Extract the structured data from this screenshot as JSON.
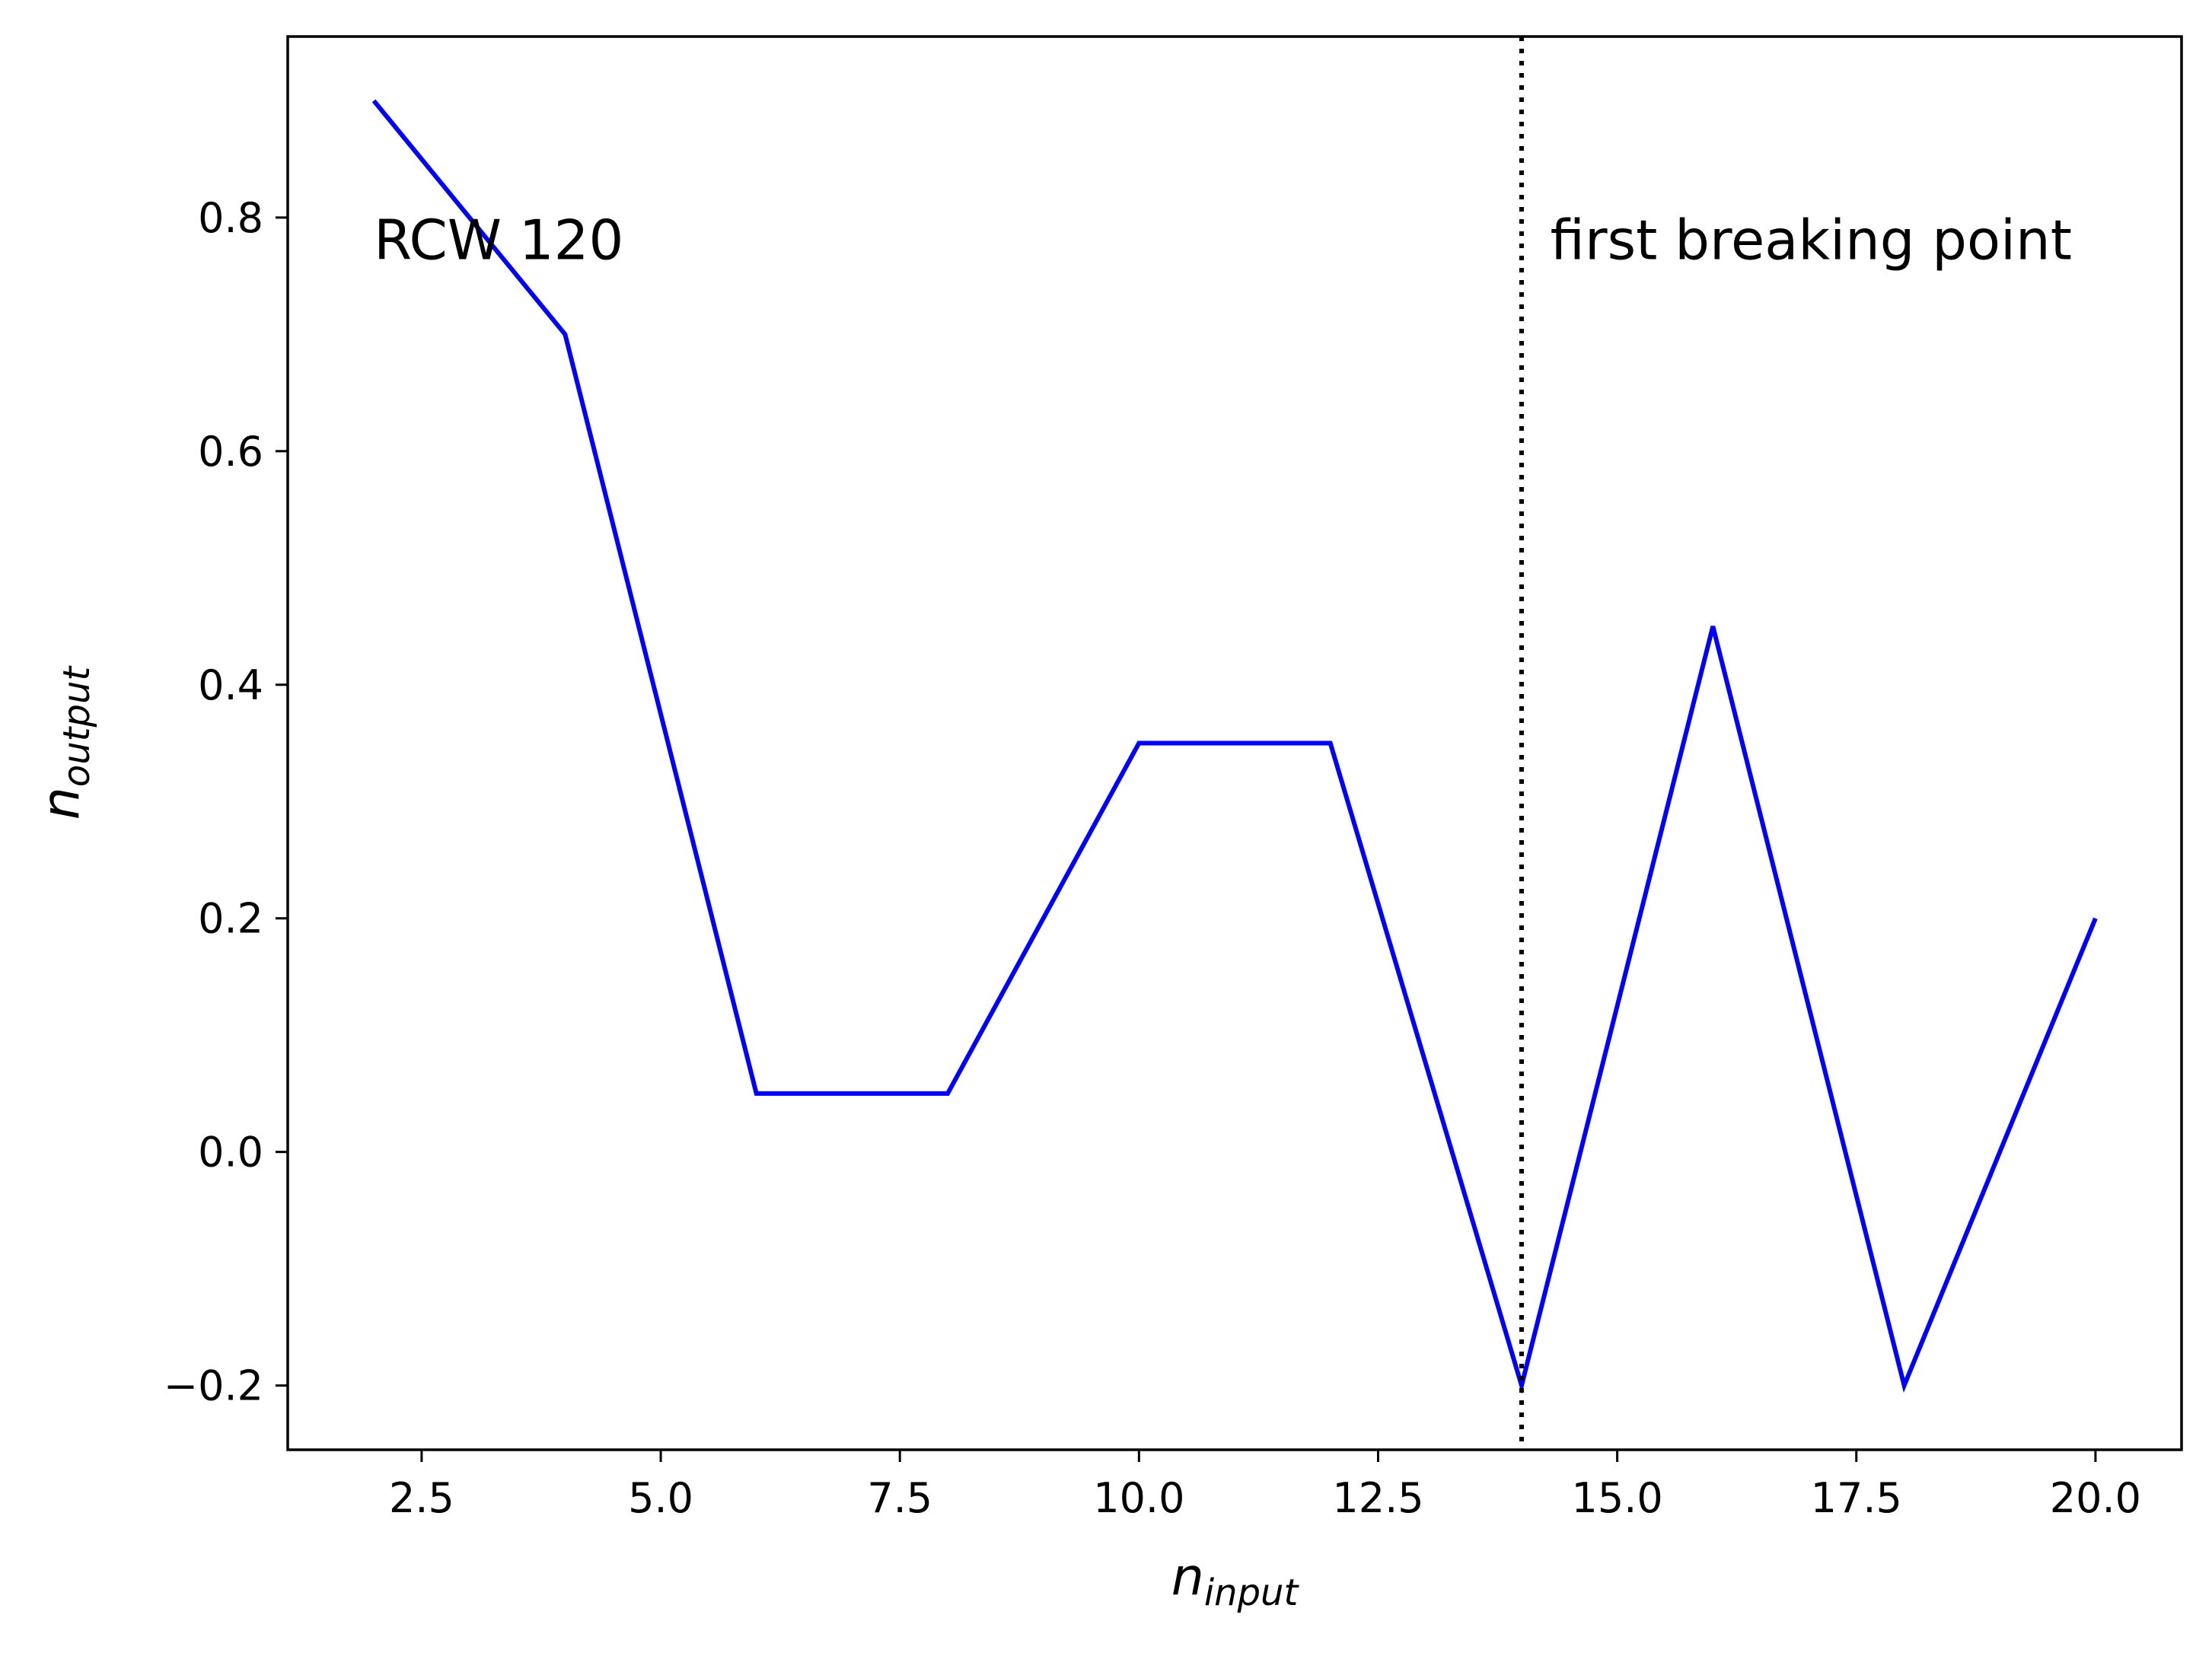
{
  "chart_data": {
    "type": "line",
    "title": "",
    "xlabel": {
      "base": "n",
      "sub": "input"
    },
    "ylabel": {
      "base": "n",
      "sub": "output"
    },
    "xlim": [
      1.1,
      20.9
    ],
    "ylim": [
      -0.255,
      0.955
    ],
    "xticks": [
      2.5,
      5.0,
      7.5,
      10.0,
      12.5,
      15.0,
      17.5,
      20.0
    ],
    "xtick_labels": [
      "2.5",
      "5.0",
      "7.5",
      "10.0",
      "12.5",
      "15.0",
      "17.5",
      "20.0"
    ],
    "yticks": [
      -0.2,
      0.0,
      0.2,
      0.4,
      0.6,
      0.8
    ],
    "ytick_labels": [
      "−0.2",
      "0.0",
      "0.2",
      "0.4",
      "0.6",
      "0.8"
    ],
    "grid": false,
    "series": [
      {
        "color": "#0000ff",
        "x": [
          2,
          4,
          6,
          8,
          10,
          12,
          14,
          16,
          18,
          20
        ],
        "y": [
          0.9,
          0.7,
          0.05,
          0.05,
          0.35,
          0.35,
          -0.2,
          0.45,
          -0.2,
          0.2
        ]
      }
    ],
    "vline": {
      "x": 14,
      "style": "dotted",
      "color": "#000000"
    },
    "annotations": [
      {
        "text": "RCW 120",
        "x": 2.0,
        "y": 0.78
      },
      {
        "text": "first breaking point",
        "x": 14.3,
        "y": 0.78
      }
    ]
  }
}
